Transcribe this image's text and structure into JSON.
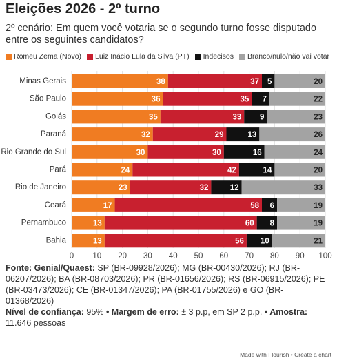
{
  "chart_data": {
    "type": "stacked-bar-horizontal",
    "title": "Eleições 2026 - 2º turno",
    "subtitle": "2º cenário: Em quem você votaria se o segundo turno fosse disputado entre os seguintes candidatos?",
    "categories": [
      "Minas Gerais",
      "São Paulo",
      "Goiás",
      "Paraná",
      "Rio Grande do Sul",
      "Pará",
      "Rio de Janeiro",
      "Ceará",
      "Pernambuco",
      "Bahia"
    ],
    "series": [
      {
        "name": "Romeu Zema (Novo)",
        "color": "#f07c22",
        "values": [
          38,
          36,
          35,
          32,
          30,
          24,
          23,
          17,
          13,
          13
        ]
      },
      {
        "name": "Luiz Inácio Lula da Silva (PT)",
        "color": "#c8202f",
        "values": [
          37,
          35,
          33,
          29,
          30,
          42,
          32,
          58,
          60,
          56
        ]
      },
      {
        "name": "Indecisos",
        "color": "#111111",
        "values": [
          5,
          7,
          9,
          13,
          16,
          14,
          12,
          6,
          8,
          10
        ]
      },
      {
        "name": "Branco/nulo/não vai votar",
        "color": "#a3a3a3",
        "values": [
          20,
          22,
          23,
          26,
          24,
          20,
          33,
          19,
          19,
          21
        ]
      }
    ],
    "xlim": [
      0,
      100
    ],
    "xticks": [
      0,
      10,
      20,
      30,
      40,
      50,
      60,
      70,
      80,
      90,
      100
    ],
    "grid": true,
    "footer": {
      "source_label": "Fonte: Genial/Quaest:",
      "source_text": "SP (BR-09928/2026); MG (BR-00430/2026); RJ (BR-06207/2026); BA (BR-08703/2026); PR (BR-01656/2026); RS (BR-06915/2026); PE (BR-03473/2026); CE (BR-01347/2026); PA (BR-01755/2026) e GO (BR-01368/2026)",
      "confidence_label": "Nível de confiança:",
      "confidence_value": "95%",
      "margin_label": "• Margem de erro:",
      "margin_value": "± 3 p.p, em SP 2 p.p.",
      "sample_label": "• Amostra:",
      "sample_value": "11.646 pessoas",
      "credit": "Made with Flourish • Create a chart"
    }
  }
}
